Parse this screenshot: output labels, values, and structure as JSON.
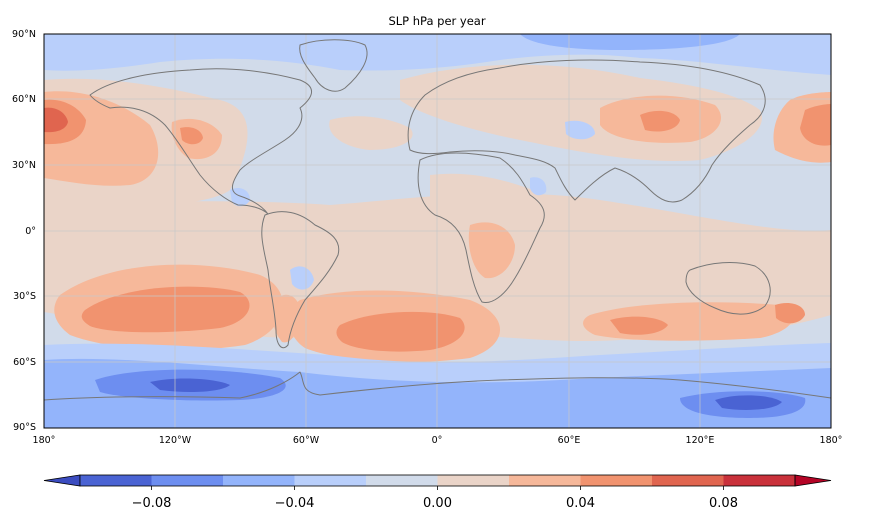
{
  "map": {
    "title": "SLP hPa per year",
    "lat_labels": [
      "90°N",
      "60°N",
      "30°N",
      "0°",
      "30°S",
      "60°S",
      "90°S"
    ],
    "lon_labels": [
      "180°",
      "120°W",
      "60°W",
      "0°",
      "60°E",
      "120°E",
      "180°"
    ],
    "colorbar": {
      "tick_labels": [
        "−0.08",
        "−0.04",
        "0.00",
        "0.04",
        "0.08"
      ],
      "levels": [
        -0.1,
        -0.08,
        -0.06,
        -0.04,
        -0.02,
        0.0,
        0.02,
        0.04,
        0.06,
        0.08,
        0.1
      ],
      "colors": [
        "#4a63d3",
        "#6d8ef0",
        "#93b4fb",
        "#b9cffb",
        "#d1dbea",
        "#ead4c8",
        "#f6b89a",
        "#f1936f",
        "#e0654f",
        "#c9313b"
      ],
      "under_color": "#3b4cc0",
      "over_color": "#b40426"
    },
    "colors": {
      "background_field": "#d1dbea",
      "coastline": "#777777",
      "gridline": "#c8c8c8",
      "frame": "#000000"
    }
  }
}
